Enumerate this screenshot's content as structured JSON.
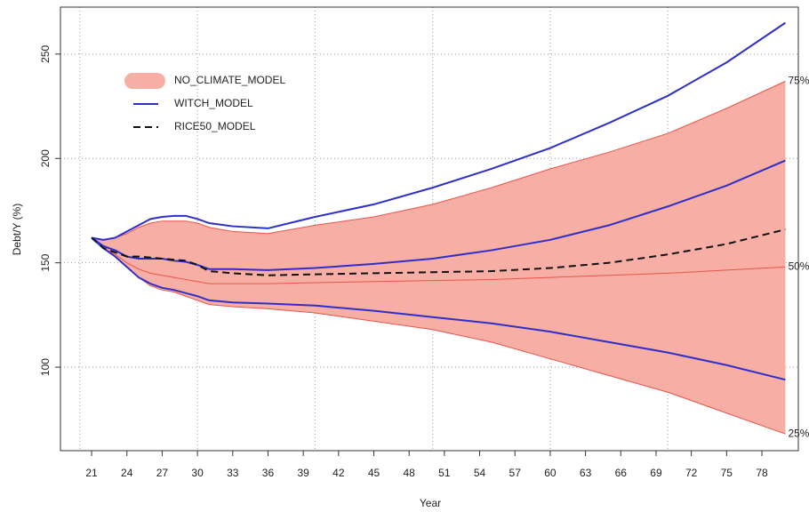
{
  "chart_data": {
    "type": "line",
    "x_label": "Year",
    "y_label": "Debt/Y (%)",
    "x": [
      21,
      22,
      23,
      24,
      25,
      26,
      27,
      28,
      29,
      30,
      31,
      33,
      36,
      40,
      45,
      50,
      55,
      60,
      65,
      70,
      75,
      80
    ],
    "xlim": [
      18.35,
      81.1
    ],
    "ylim": [
      60,
      272.5
    ],
    "xticks": [
      21,
      24,
      27,
      30,
      33,
      36,
      39,
      42,
      45,
      48,
      51,
      54,
      57,
      60,
      63,
      66,
      69,
      72,
      75,
      78
    ],
    "xgrid": [
      20,
      30,
      40,
      50,
      60,
      70
    ],
    "yticks": [
      100,
      150,
      200,
      250
    ],
    "grid": true,
    "legend": "top-left",
    "series": [
      {
        "name": "NO_CLIMATE_MODEL",
        "kind": "band",
        "color": "#f6aea5",
        "edge_color": "#e8554b",
        "upper": [
          162,
          161,
          162,
          164,
          167,
          169,
          170,
          170,
          170,
          169,
          167,
          165,
          164,
          168,
          172,
          178,
          186,
          195,
          203,
          212,
          224,
          237
        ],
        "median": [
          162,
          157,
          154,
          150,
          147,
          145,
          144,
          143,
          142,
          141,
          140,
          140,
          140,
          140.5,
          141,
          141.5,
          142,
          143,
          144,
          145,
          146.5,
          148
        ],
        "lower": [
          162,
          157,
          153,
          148,
          143,
          139,
          137,
          136,
          134,
          132,
          130,
          129,
          128,
          126,
          122,
          118,
          112,
          104,
          96,
          88,
          78,
          68
        ],
        "labels": [
          "75%",
          "50%",
          "25%"
        ]
      },
      {
        "name": "WITCH_MODEL",
        "kind": "lines",
        "color": "#2f2fc8",
        "upper": [
          162,
          161,
          162,
          165,
          168,
          171,
          172,
          172.5,
          172.5,
          171,
          169,
          167.5,
          166.5,
          172,
          178,
          186,
          195,
          205,
          217,
          230,
          246,
          265
        ],
        "median": [
          162,
          158,
          156,
          153,
          152,
          152,
          152,
          151,
          150.5,
          149,
          147,
          147,
          146.5,
          147.5,
          149.5,
          152,
          156,
          161,
          168,
          177,
          187,
          199
        ],
        "lower": [
          162,
          157,
          153,
          148,
          143,
          140,
          138,
          137,
          135.5,
          134,
          132,
          131,
          130.5,
          129.5,
          127,
          124,
          121,
          117,
          112,
          107,
          101,
          94
        ]
      },
      {
        "name": "RICE50_MODEL",
        "kind": "dashed",
        "color": "#111111",
        "values": [
          162,
          157,
          155,
          153,
          153,
          152.5,
          152,
          151.5,
          151,
          149,
          146,
          145,
          144,
          144.5,
          145,
          145.5,
          146,
          147.5,
          150,
          154,
          159,
          166
        ]
      }
    ]
  }
}
